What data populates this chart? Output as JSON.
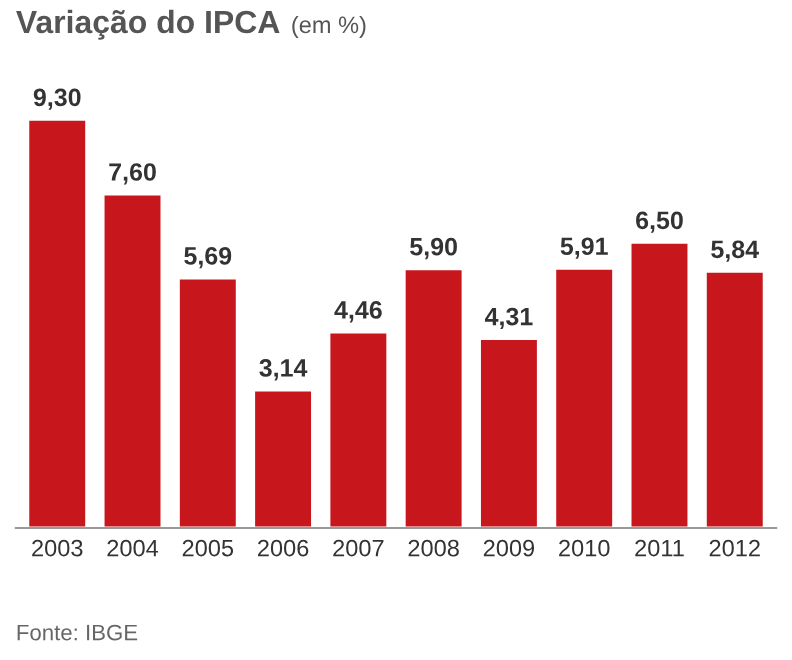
{
  "chart_data": {
    "type": "bar",
    "title": "Variação do IPCA",
    "subtitle": "(em %)",
    "categories": [
      "2003",
      "2004",
      "2005",
      "2006",
      "2007",
      "2008",
      "2009",
      "2010",
      "2011",
      "2012"
    ],
    "values": [
      9.3,
      7.6,
      5.69,
      3.14,
      4.46,
      5.9,
      4.31,
      5.91,
      6.5,
      5.84
    ],
    "value_labels": [
      "9,30",
      "7,60",
      "5,69",
      "3,14",
      "4,46",
      "5,90",
      "4,31",
      "5,91",
      "6,50",
      "5,84"
    ],
    "color": "#c8161d",
    "annotations": [
      "Fonte: IBGE"
    ]
  }
}
